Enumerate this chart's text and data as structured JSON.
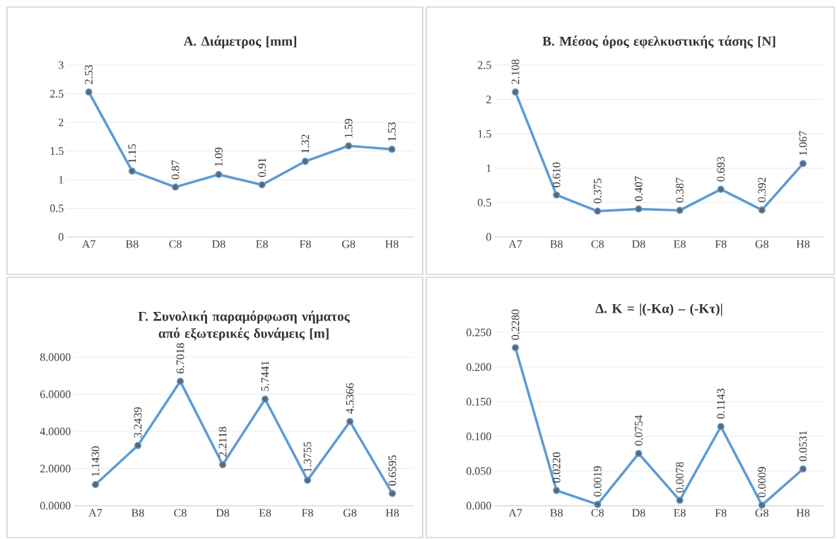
{
  "chart_data": [
    {
      "type": "line",
      "title": "Α. Διάμετρος [mm]",
      "categories": [
        "A7",
        "B8",
        "C8",
        "D8",
        "E8",
        "F8",
        "G8",
        "H8"
      ],
      "grid": "y",
      "marker": "circle",
      "series": [
        {
          "color": "#5b9bd5",
          "values": [
            2.53,
            1.15,
            0.87,
            1.09,
            0.91,
            1.32,
            1.59,
            1.53
          ],
          "value_labels": [
            "2.53",
            "1.15",
            "0.87",
            "1.09",
            "0.91",
            "1.32",
            "1.59",
            "1.53"
          ]
        }
      ],
      "ylim": [
        0,
        3
      ],
      "yticks": [
        0,
        0.5,
        1,
        1.5,
        2,
        2.5,
        3
      ]
    },
    {
      "type": "line",
      "title": "Β. Μέσος όρος εφελκυστικής τάσης [N]",
      "categories": [
        "A7",
        "B8",
        "C8",
        "D8",
        "E8",
        "F8",
        "G8",
        "H8"
      ],
      "grid": "y",
      "marker": "circle",
      "series": [
        {
          "color": "#5b9bd5",
          "values": [
            2.108,
            0.61,
            0.375,
            0.407,
            0.387,
            0.693,
            0.392,
            1.067
          ],
          "value_labels": [
            "2.108",
            "0.610",
            "0.375",
            "0.407",
            "0.387",
            "0.693",
            "0.392",
            "1.067"
          ]
        }
      ],
      "ylim": [
        0,
        2.5
      ],
      "yticks": [
        0,
        0.5,
        1,
        1.5,
        2,
        2.5
      ]
    },
    {
      "type": "line",
      "title": "Γ. Συνολική παραμόρφωση νήματος από εξωτερικές δυνάμεις [m]",
      "categories": [
        "A7",
        "B8",
        "C8",
        "D8",
        "E8",
        "F8",
        "G8",
        "H8"
      ],
      "grid": "y",
      "marker": "circle",
      "series": [
        {
          "color": "#5b9bd5",
          "values": [
            1.143,
            3.2439,
            6.7018,
            2.2118,
            5.7441,
            1.3755,
            4.5366,
            0.6595
          ],
          "value_labels": [
            "1.1430",
            "3.2439",
            "6.7018",
            "2.2118",
            "5.7441",
            "1.3755",
            "4.5366",
            "0.6595"
          ]
        }
      ],
      "ylim": [
        0,
        8
      ],
      "yticks": [
        {
          "value": 0,
          "label": "0.0000"
        },
        {
          "value": 2,
          "label": "2.0000"
        },
        {
          "value": 4,
          "label": "4.0000"
        },
        {
          "value": 6,
          "label": "6.0000"
        },
        {
          "value": 8,
          "label": "8.0000"
        }
      ]
    },
    {
      "type": "line",
      "title": "Δ. K = |(-Kα) – (-Kτ)|",
      "categories": [
        "A7",
        "B8",
        "C8",
        "D8",
        "E8",
        "F8",
        "G8",
        "H8"
      ],
      "grid": "y",
      "marker": "circle",
      "series": [
        {
          "color": "#5b9bd5",
          "values": [
            0.228,
            0.022,
            0.0019,
            0.0754,
            0.0078,
            0.1143,
            0.0009,
            0.0531
          ],
          "value_labels": [
            "0.2280",
            "0.0220",
            "0.0019",
            "0.0754",
            "0.0078",
            "0.1143",
            "0.0009",
            "0.0531"
          ]
        }
      ],
      "ylim": [
        0,
        0.25
      ],
      "yticks": [
        {
          "value": 0,
          "label": "0.000"
        },
        {
          "value": 0.05,
          "label": "0.050"
        },
        {
          "value": 0.1,
          "label": "0.100"
        },
        {
          "value": 0.15,
          "label": "0.150"
        },
        {
          "value": 0.2,
          "label": "0.200"
        },
        {
          "value": 0.25,
          "label": "0.250"
        }
      ]
    }
  ]
}
